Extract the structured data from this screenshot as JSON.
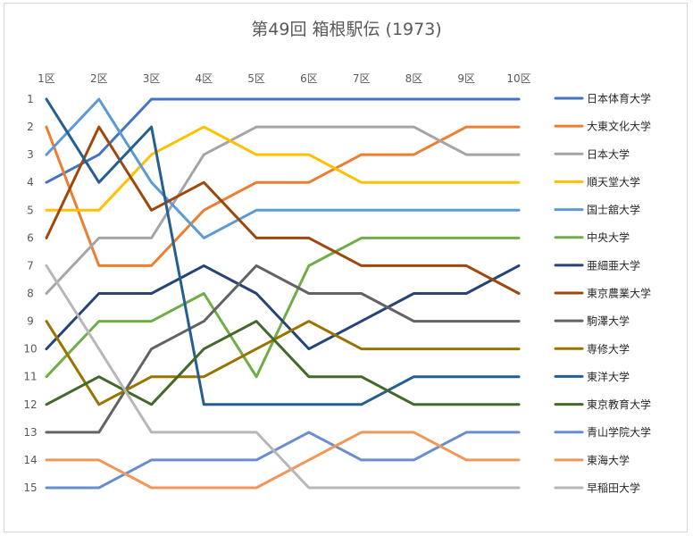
{
  "chart_data": {
    "type": "line",
    "title": "第49回 箱根駅伝 (1973)",
    "xlabel": "",
    "ylabel": "",
    "categories": [
      "1区",
      "2区",
      "3区",
      "4区",
      "5区",
      "6区",
      "7区",
      "8区",
      "9区",
      "10区"
    ],
    "ylim": [
      1,
      15
    ],
    "y_reversed": true,
    "y_ticks": [
      1,
      2,
      3,
      4,
      5,
      6,
      7,
      8,
      9,
      10,
      11,
      12,
      13,
      14,
      15
    ],
    "grid": false,
    "legend_position": "right",
    "series": [
      {
        "name": "日本体育大学",
        "color": "#4472C4",
        "values": [
          4,
          3,
          1,
          1,
          1,
          1,
          1,
          1,
          1,
          1
        ]
      },
      {
        "name": "大東文化大学",
        "color": "#ED7D31",
        "values": [
          2,
          7,
          7,
          5,
          4,
          4,
          3,
          3,
          2,
          2
        ]
      },
      {
        "name": "日本大学",
        "color": "#A5A5A5",
        "values": [
          8,
          6,
          6,
          3,
          2,
          2,
          2,
          2,
          3,
          3
        ]
      },
      {
        "name": "順天堂大学",
        "color": "#FFC000",
        "values": [
          5,
          5,
          3,
          2,
          3,
          3,
          4,
          4,
          4,
          4
        ]
      },
      {
        "name": "国士舘大学",
        "color": "#5B9BD5",
        "values": [
          3,
          1,
          4,
          6,
          5,
          5,
          5,
          5,
          5,
          5
        ]
      },
      {
        "name": "中央大学",
        "color": "#70AD47",
        "values": [
          11,
          9,
          9,
          8,
          11,
          7,
          6,
          6,
          6,
          6
        ]
      },
      {
        "name": "亜細亜大学",
        "color": "#264478",
        "values": [
          10,
          8,
          8,
          7,
          8,
          10,
          9,
          8,
          8,
          7
        ]
      },
      {
        "name": "東京農業大学",
        "color": "#9E480E",
        "values": [
          6,
          2,
          5,
          4,
          6,
          6,
          7,
          7,
          7,
          8
        ]
      },
      {
        "name": "駒澤大学",
        "color": "#636363",
        "values": [
          13,
          13,
          10,
          9,
          7,
          8,
          8,
          9,
          9,
          9
        ]
      },
      {
        "name": "専修大学",
        "color": "#997300",
        "values": [
          9,
          12,
          11,
          11,
          10,
          9,
          10,
          10,
          10,
          10
        ]
      },
      {
        "name": "東洋大学",
        "color": "#255E91",
        "values": [
          1,
          4,
          2,
          12,
          12,
          12,
          12,
          11,
          11,
          11
        ]
      },
      {
        "name": "東京教育大学",
        "color": "#43682B",
        "values": [
          12,
          11,
          12,
          10,
          9,
          11,
          11,
          12,
          12,
          12
        ]
      },
      {
        "name": "青山学院大学",
        "color": "#698ED0",
        "values": [
          15,
          15,
          14,
          14,
          14,
          13,
          14,
          14,
          13,
          13
        ]
      },
      {
        "name": "東海大学",
        "color": "#F1975A",
        "values": [
          14,
          14,
          15,
          15,
          15,
          14,
          13,
          13,
          14,
          14
        ]
      },
      {
        "name": "早稲田大学",
        "color": "#B7B7B7",
        "values": [
          7,
          10,
          13,
          13,
          13,
          15,
          15,
          15,
          15,
          15
        ]
      }
    ]
  }
}
